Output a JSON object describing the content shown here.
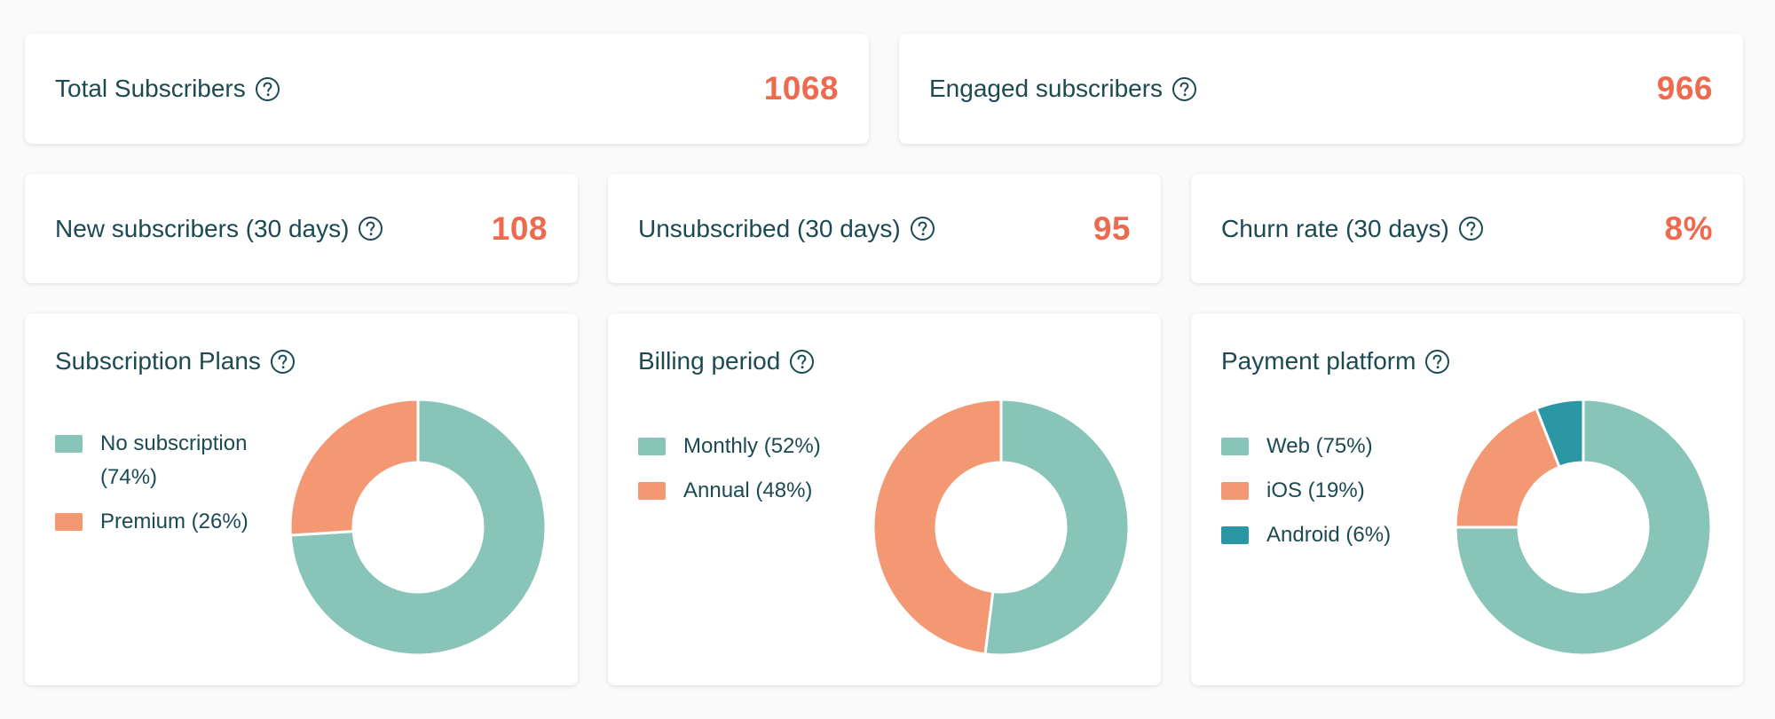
{
  "stats": {
    "total_subscribers": {
      "label": "Total Subscribers",
      "value": "1068"
    },
    "engaged_subscribers": {
      "label": "Engaged subscribers",
      "value": "966"
    },
    "new_subscribers": {
      "label": "New subscribers (30 days)",
      "value": "108"
    },
    "unsubscribed": {
      "label": "Unsubscribed (30 days)",
      "value": "95"
    },
    "churn_rate": {
      "label": "Churn rate (30 days)",
      "value": "8%"
    }
  },
  "colors": {
    "teal_light": "#89c4b8",
    "orange": "#f49874",
    "teal_dark": "#2b97a5",
    "value_accent": "#ee6a4e",
    "text": "#1c4a53"
  },
  "charts": {
    "subscription_plans": {
      "title": "Subscription Plans"
    },
    "billing_period": {
      "title": "Billing period"
    },
    "payment_platform": {
      "title": "Payment platform"
    }
  },
  "chart_data": [
    {
      "type": "pie",
      "title": "Subscription Plans",
      "categories": [
        "No subscription (74%)",
        "Premium (26%)"
      ],
      "values": [
        74,
        26
      ],
      "colors": [
        "#89c4b8",
        "#f49874"
      ],
      "legend": "left"
    },
    {
      "type": "pie",
      "title": "Billing period",
      "categories": [
        "Monthly (52%)",
        "Annual (48%)"
      ],
      "values": [
        52,
        48
      ],
      "colors": [
        "#89c4b8",
        "#f49874"
      ],
      "legend": "left"
    },
    {
      "type": "pie",
      "title": "Payment platform",
      "categories": [
        "Web (75%)",
        "iOS (19%)",
        "Android (6%)"
      ],
      "values": [
        75,
        19,
        6
      ],
      "colors": [
        "#89c4b8",
        "#f49874",
        "#2b97a5"
      ],
      "legend": "left"
    }
  ]
}
